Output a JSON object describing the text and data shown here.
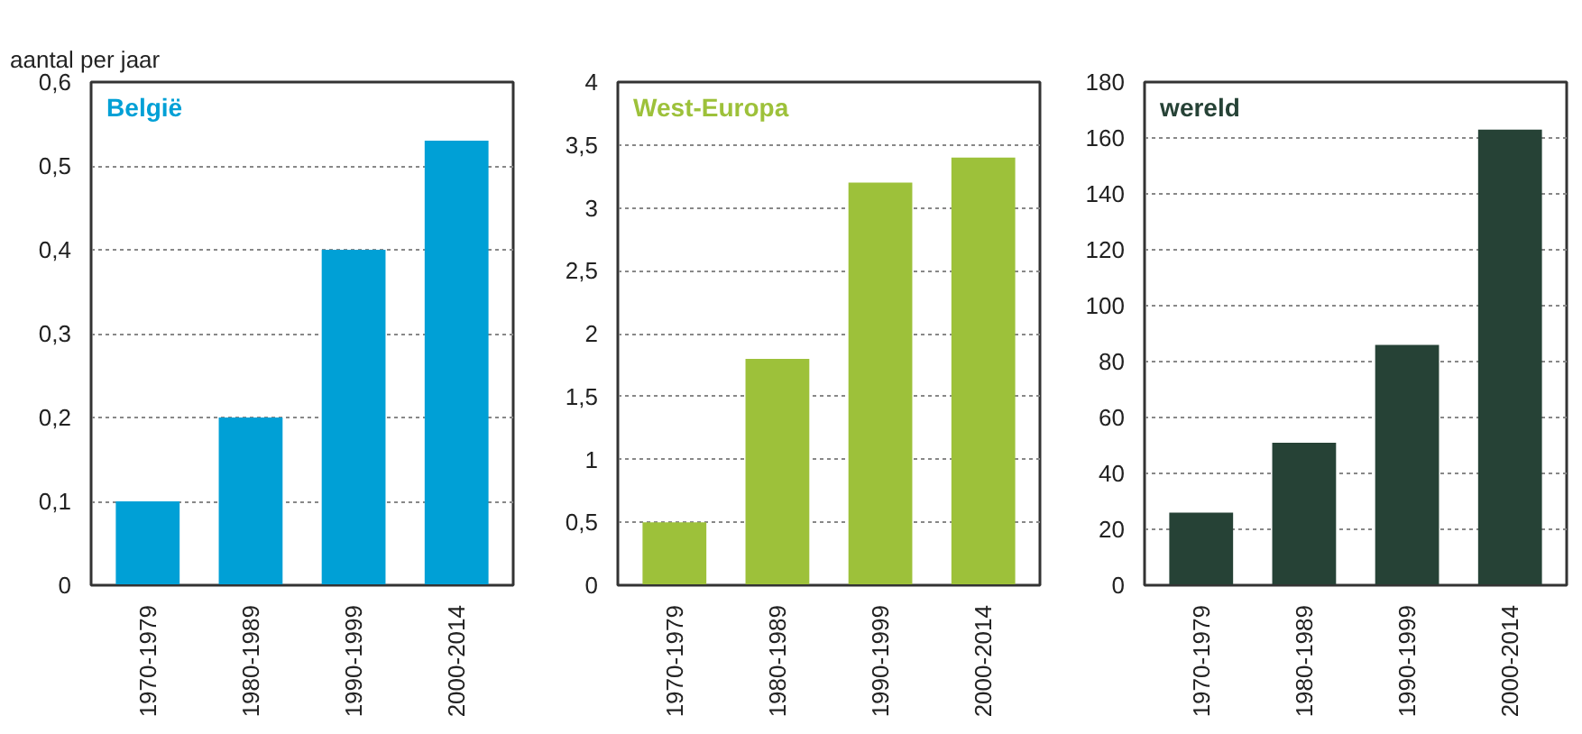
{
  "chart_data": [
    {
      "type": "bar",
      "title": "België",
      "ylabel": "aantal per jaar",
      "categories": [
        "1970-1979",
        "1980-1989",
        "1990-1999",
        "2000-2014"
      ],
      "values": [
        0.1,
        0.2,
        0.4,
        0.53
      ],
      "color": "#00a0d6",
      "ylim": [
        0,
        0.6
      ],
      "yticks": [
        0,
        {
          "value": 0.1,
          "label": "0,1"
        },
        {
          "value": 0.2,
          "label": "0,2"
        },
        {
          "value": 0.3,
          "label": "0,3"
        },
        {
          "value": 0.4,
          "label": "0,4"
        },
        {
          "value": 0.5,
          "label": "0,5"
        },
        {
          "value": 0.6,
          "label": "0,6"
        }
      ],
      "grid": "y"
    },
    {
      "type": "bar",
      "title": "West-Europa",
      "categories": [
        "1970-1979",
        "1980-1989",
        "1990-1999",
        "2000-2014"
      ],
      "values": [
        0.5,
        1.8,
        3.2,
        3.4
      ],
      "color": "#9dc13a",
      "ylim": [
        0,
        4
      ],
      "yticks": [
        0,
        {
          "value": 0.5,
          "label": "0,5"
        },
        1,
        {
          "value": 1.5,
          "label": "1,5"
        },
        2,
        {
          "value": 2.5,
          "label": "2,5"
        },
        3,
        {
          "value": 3.5,
          "label": "3,5"
        },
        4
      ],
      "grid": "y"
    },
    {
      "type": "bar",
      "title": "wereld",
      "categories": [
        "1970-1979",
        "1980-1989",
        "1990-1999",
        "2000-2014"
      ],
      "values": [
        26,
        51,
        86,
        163
      ],
      "color": "#264236",
      "ylim": [
        0,
        180
      ],
      "yticks": [
        0,
        20,
        40,
        60,
        80,
        100,
        120,
        140,
        160,
        180
      ],
      "grid": "y"
    }
  ]
}
